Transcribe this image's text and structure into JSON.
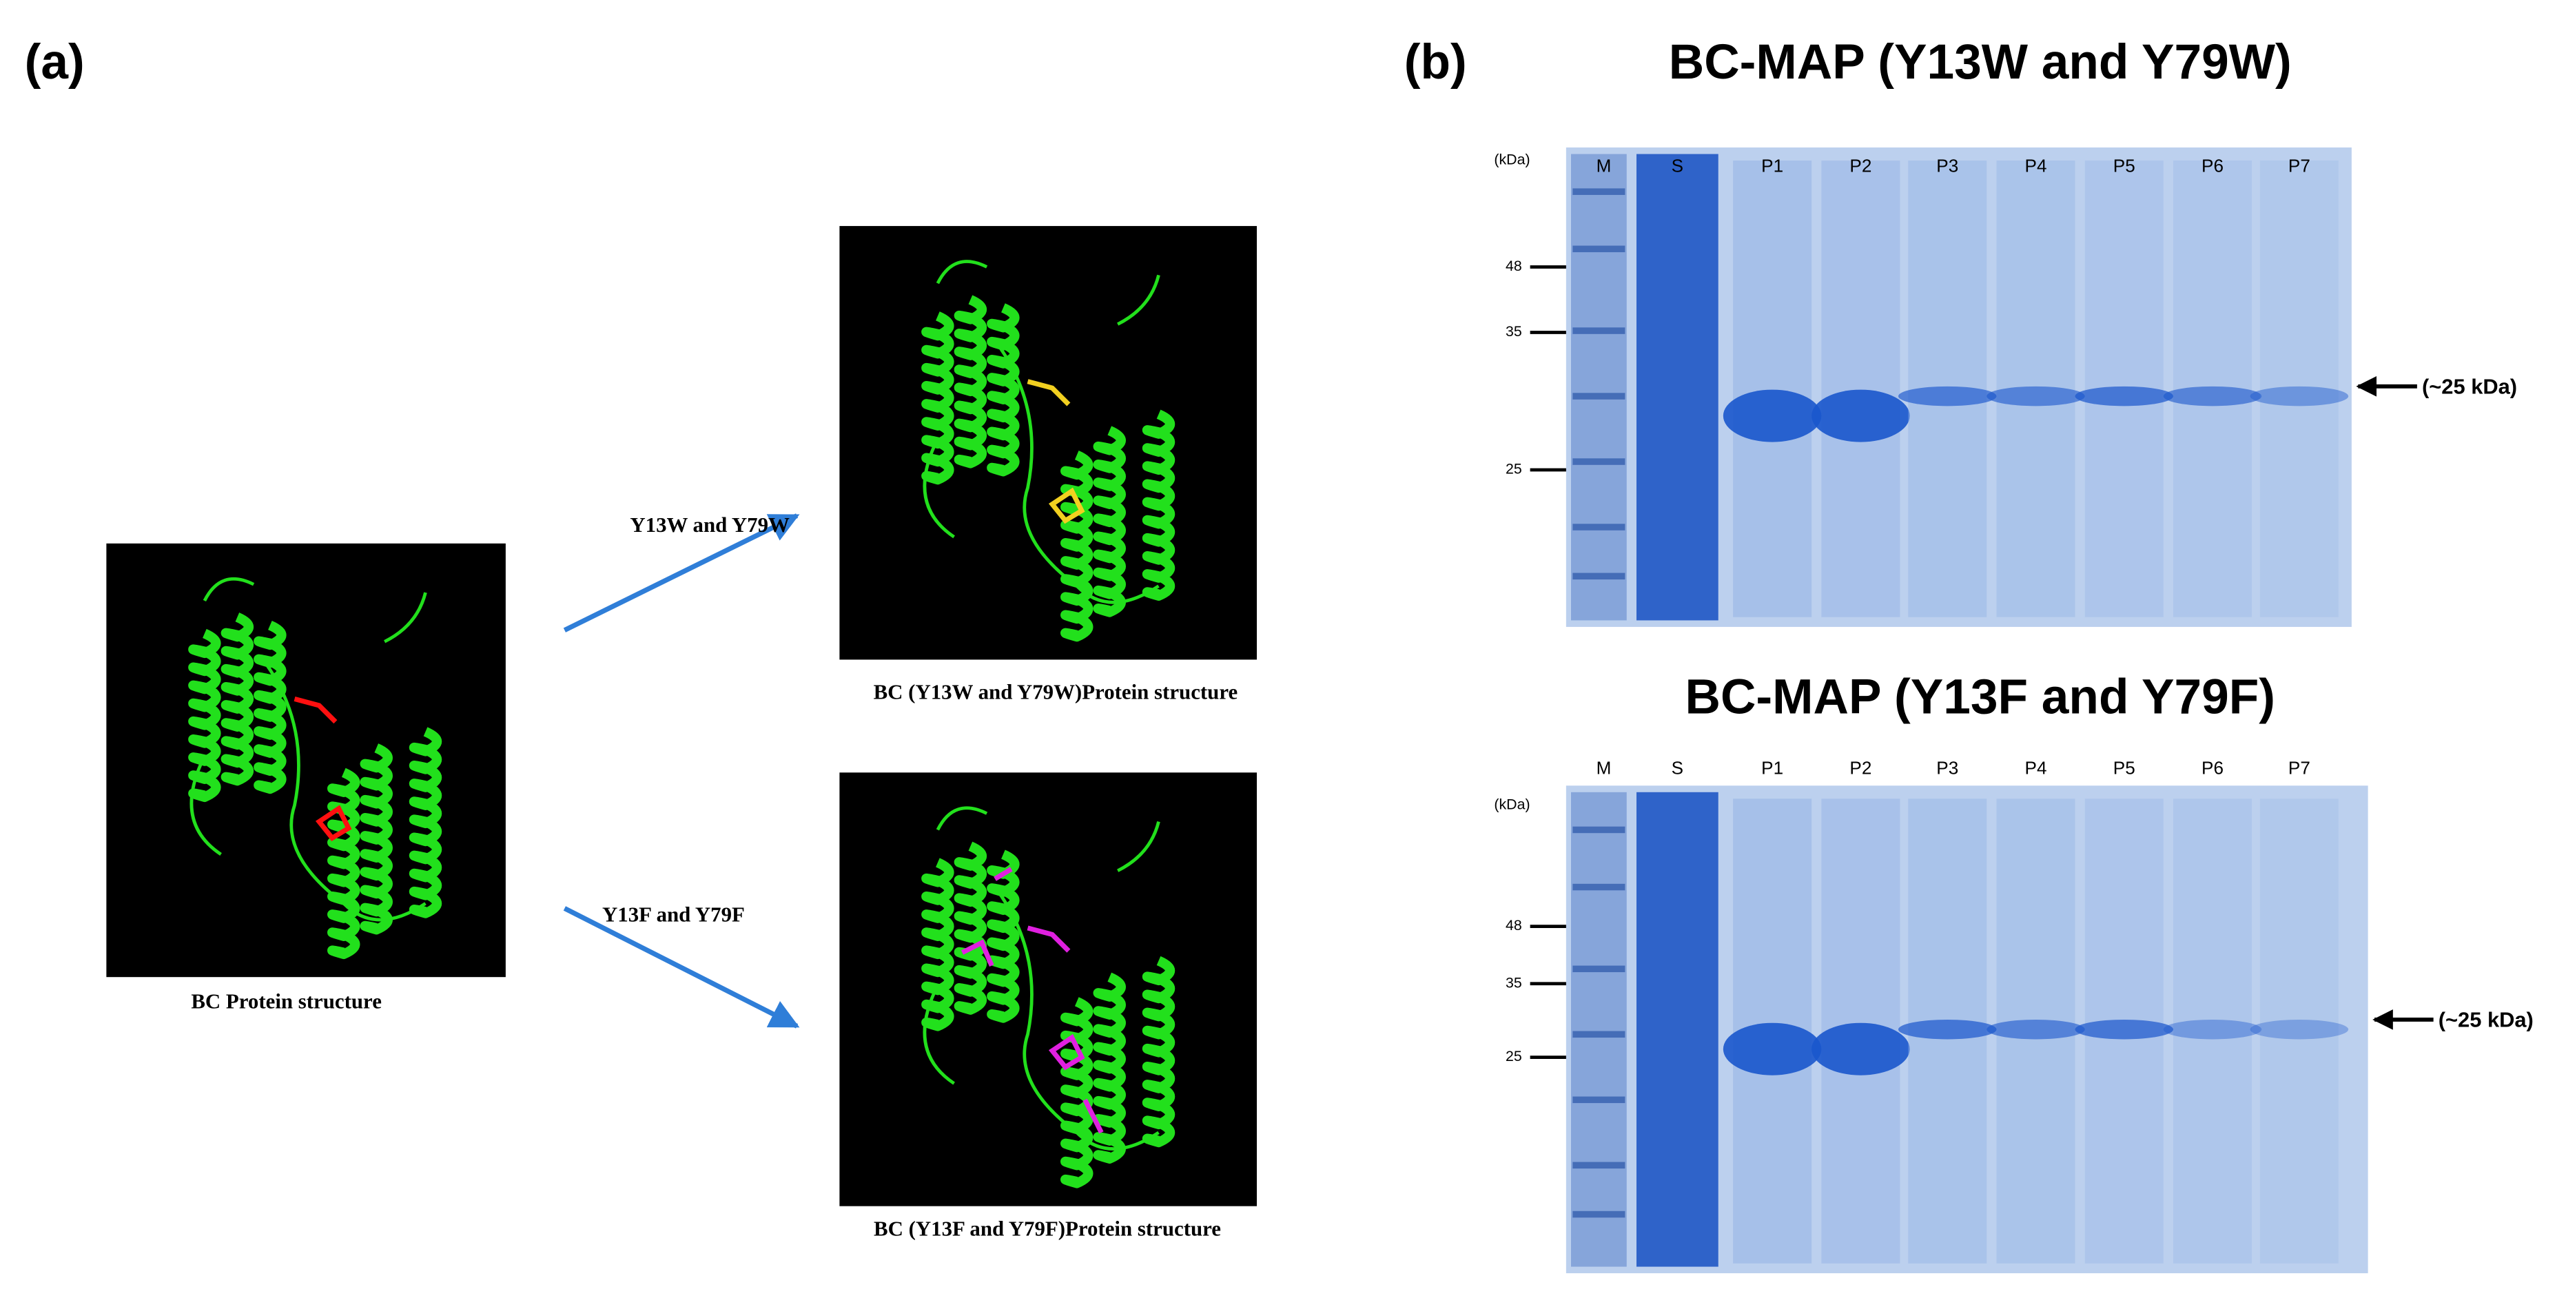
{
  "panel_a": {
    "label": "(a)",
    "wild_type": {
      "caption": "BC Protein structure"
    },
    "mutants": [
      {
        "mutation": "Y13W and Y79W",
        "caption": "BC (Y13W and Y79W)Protein structure"
      },
      {
        "mutation": "Y13F and Y79F",
        "caption": "BC (Y13F and Y79F)Protein structure"
      }
    ]
  },
  "panel_b": {
    "label": "(b)",
    "gels": [
      {
        "title": "BC-MAP (Y13W and Y79W)",
        "lanes": [
          "M",
          "S",
          "P1",
          "P2",
          "P3",
          "P4",
          "P5",
          "P6",
          "P7"
        ],
        "unit": "(kDa)",
        "markers": [
          48,
          35,
          25
        ],
        "band_label": "(~25 kDa)"
      },
      {
        "title": "BC-MAP (Y13F and Y79F)",
        "lanes": [
          "M",
          "S",
          "P1",
          "P2",
          "P3",
          "P4",
          "P5",
          "P6",
          "P7"
        ],
        "unit": "(kDa)",
        "markers": [
          48,
          35,
          25
        ],
        "band_label": "(~25 kDa)"
      }
    ]
  }
}
